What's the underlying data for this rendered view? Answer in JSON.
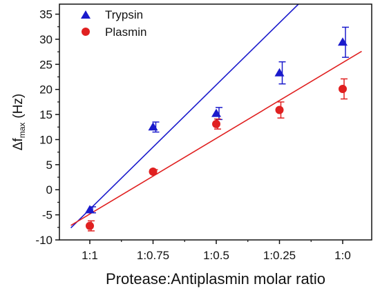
{
  "chart_data": {
    "type": "scatter",
    "title": "",
    "xlabel": "Protease:Antiplasmin molar ratio",
    "ylabel_main": "Δf",
    "ylabel_sub": "max",
    "ylabel_unit": "(Hz)",
    "categories": [
      "1:1",
      "1:0.75",
      "1:0.5",
      "1:0.25",
      "1:0"
    ],
    "ylim": [
      -10,
      37
    ],
    "yticks": [
      -10,
      -5,
      0,
      5,
      10,
      15,
      20,
      25,
      30,
      35
    ],
    "legend_position": "top-left",
    "series": [
      {
        "name": "Trypsin",
        "marker": "triangle",
        "color": "#1a1acc",
        "values": [
          -4.0,
          12.5,
          15.2,
          23.3,
          29.4
        ],
        "errors": [
          0.6,
          1.0,
          1.2,
          2.2,
          3.0
        ],
        "fit": {
          "x": [
            -0.3,
            3.3
          ],
          "y": [
            -7.6,
            37.0
          ]
        }
      },
      {
        "name": "Plasmin",
        "marker": "circle",
        "color": "#e02020",
        "values": [
          -7.2,
          3.6,
          13.1,
          15.9,
          20.1
        ],
        "errors": [
          1.0,
          0.4,
          1.0,
          1.6,
          2.0
        ],
        "fit": {
          "x": [
            -0.3,
            4.3
          ],
          "y": [
            -7.1,
            27.6
          ]
        }
      }
    ]
  }
}
